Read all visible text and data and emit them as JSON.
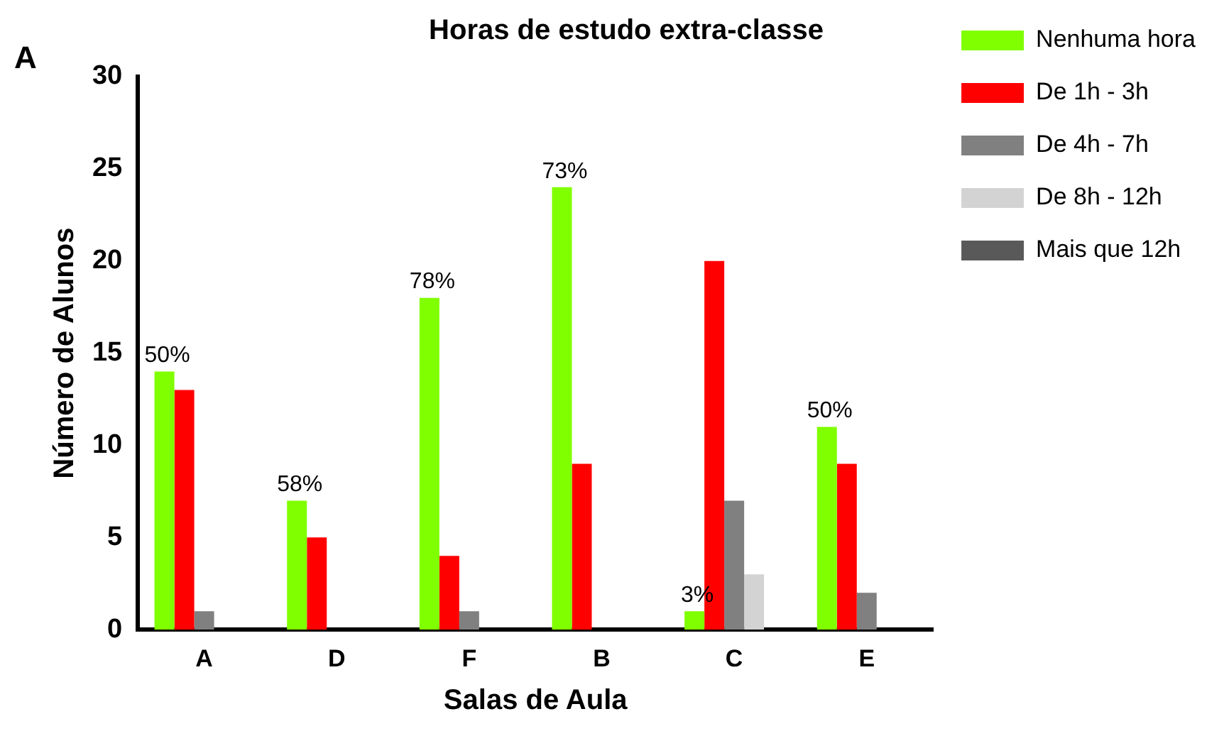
{
  "chart_data": {
    "type": "bar",
    "title": "Horas de estudo extra-classe",
    "xlabel": "Salas de Aula",
    "ylabel": "Número de Alunos",
    "annotations": [
      "A",
      "50%",
      "58%",
      "78%",
      "73%",
      "3%",
      "50%"
    ],
    "categories": [
      "A",
      "D",
      "F",
      "B",
      "C",
      "E"
    ],
    "series": [
      {
        "name": "Nenhuma hora",
        "color": "#80ff00",
        "values": [
          14,
          7,
          18,
          24,
          1,
          11
        ]
      },
      {
        "name": "De 1h - 3h",
        "color": "#ff0000",
        "values": [
          13,
          5,
          4,
          9,
          20,
          9
        ]
      },
      {
        "name": "De 4h - 7h",
        "color": "#808080",
        "values": [
          1,
          0,
          1,
          0,
          7,
          2
        ]
      },
      {
        "name": "De 8h - 12h",
        "color": "#d3d3d3",
        "values": [
          0,
          0,
          0,
          0,
          3,
          0
        ]
      },
      {
        "name": "Mais que 12h",
        "color": "#595959",
        "values": [
          0,
          0,
          0,
          0,
          0,
          0
        ]
      }
    ],
    "ylim": [
      0,
      30
    ],
    "yticks": [
      0,
      5,
      10,
      15,
      20,
      25,
      30
    ],
    "grid": false,
    "legend": "right"
  }
}
